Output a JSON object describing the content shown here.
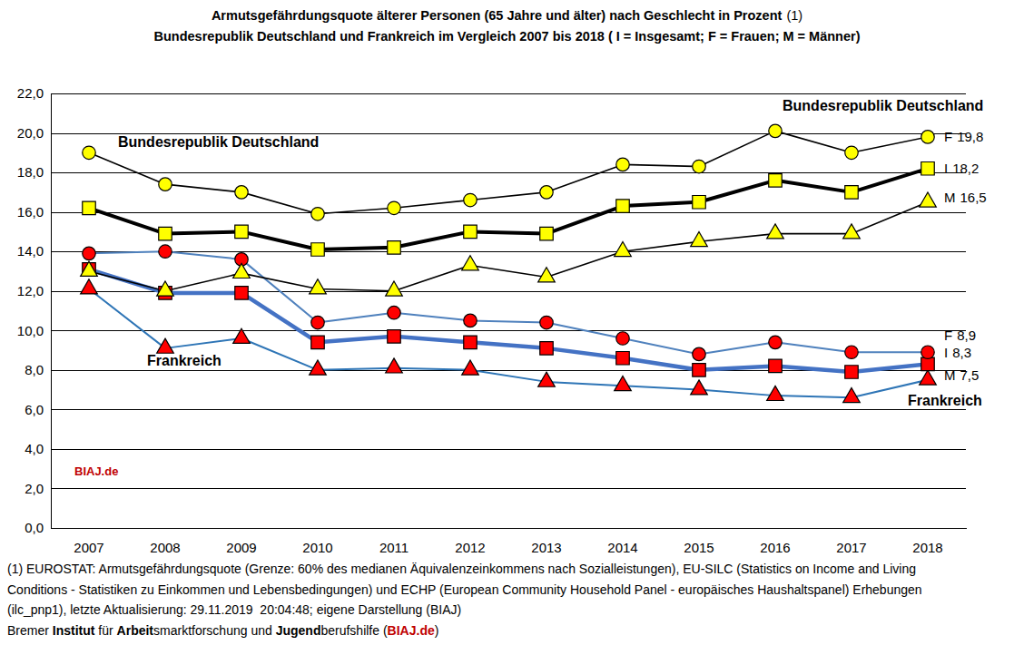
{
  "chart_data": {
    "type": "line",
    "title": "Armutsgefährdungsquote älterer Personen (65 Jahre und älter) nach Geschlecht in Prozent",
    "title_ref": "(1)",
    "subtitle": "Bundesrepublik Deutschland und Frankreich im Vergleich 2007 bis 2018 ( I = Insgesamt; F = Frauen; M = Männer)",
    "categories": [
      "2007",
      "2008",
      "2009",
      "2010",
      "2011",
      "2012",
      "2013",
      "2014",
      "2015",
      "2016",
      "2017",
      "2018"
    ],
    "ylim": [
      0,
      22
    ],
    "yticks": [
      {
        "value": 0,
        "label": "0,0"
      },
      {
        "value": 2,
        "label": "2,0"
      },
      {
        "value": 4,
        "label": "4,0"
      },
      {
        "value": 6,
        "label": "6,0"
      },
      {
        "value": 8,
        "label": "8,0"
      },
      {
        "value": 10,
        "label": "10,0"
      },
      {
        "value": 12,
        "label": "12,0"
      },
      {
        "value": 14,
        "label": "14,0"
      },
      {
        "value": 16,
        "label": "16,0"
      },
      {
        "value": 18,
        "label": "18,0"
      },
      {
        "value": 20,
        "label": "20,0"
      },
      {
        "value": 22,
        "label": "22,0"
      }
    ],
    "grid": true,
    "series": [
      {
        "name": "F",
        "color": "#000000",
        "marker": "circle",
        "line_style": "solid",
        "values": [
          19.0,
          17.4,
          17.0,
          15.9,
          16.2,
          16.6,
          17.0,
          18.4,
          18.3,
          20.1,
          19.0,
          19.8
        ],
        "value_labels": [
          null,
          null,
          null,
          null,
          null,
          null,
          null,
          null,
          null,
          null,
          null,
          "19,8"
        ]
      },
      {
        "name": "I",
        "color": "#000000",
        "marker": "square",
        "line_style": "solid",
        "values": [
          16.2,
          14.9,
          15.0,
          14.1,
          14.2,
          15.0,
          14.9,
          16.3,
          16.5,
          17.6,
          17.0,
          18.2
        ],
        "value_labels": [
          null,
          null,
          null,
          null,
          null,
          null,
          null,
          null,
          null,
          null,
          null,
          "18,2"
        ]
      },
      {
        "name": "M",
        "color": "#000000",
        "marker": "triangle",
        "line_style": "solid",
        "values": [
          13.0,
          12.0,
          12.9,
          12.1,
          12.0,
          13.3,
          12.7,
          14.0,
          14.5,
          14.9,
          14.9,
          16.5
        ],
        "value_labels": [
          null,
          null,
          null,
          null,
          null,
          null,
          null,
          null,
          null,
          null,
          null,
          "16,5"
        ]
      },
      {
        "name": "F",
        "color": "#4f81bd",
        "marker": "circle",
        "line_style": "solid",
        "values": [
          13.9,
          14.0,
          13.6,
          10.4,
          10.9,
          10.5,
          10.4,
          9.6,
          8.8,
          9.4,
          8.9,
          8.9
        ],
        "value_labels": [
          null,
          null,
          null,
          null,
          null,
          null,
          null,
          null,
          null,
          null,
          null,
          "8,9"
        ]
      },
      {
        "name": "I",
        "color": "#4472c4",
        "marker": "square",
        "line_style": "solid",
        "values": [
          13.1,
          11.9,
          11.9,
          9.4,
          9.7,
          9.4,
          9.1,
          8.6,
          8.0,
          8.2,
          7.9,
          8.3
        ],
        "value_labels": [
          null,
          null,
          null,
          null,
          null,
          null,
          null,
          null,
          null,
          null,
          null,
          "8,3"
        ]
      },
      {
        "name": "M",
        "color": "#2e75b6",
        "marker": "triangle",
        "line_style": "solid",
        "values": [
          12.1,
          9.1,
          9.6,
          8.0,
          8.1,
          8.0,
          7.4,
          7.2,
          7.0,
          6.7,
          6.6,
          7.5
        ],
        "value_labels": [
          null,
          null,
          null,
          null,
          null,
          null,
          null,
          null,
          null,
          null,
          null,
          "7,5"
        ]
      }
    ],
    "annotations": [
      "Bundesrepublik Deutschland",
      "Bundesrepublik Deutschland",
      "Frankreich",
      "Frankreich"
    ],
    "watermark": "BIAJ.de",
    "source": [
      "(1) EUROSTAT: Armutsgefährdungsquote (Grenze: 60% des medianen Äquivalenzeinkommens nach Sozialleistungen), EU-SILC (Statistics on Income and Living",
      "Conditions - Statistiken zu Einkommen und Lebensbedingungen) und ECHP (European Community Household Panel - europäisches Haushaltspanel) Erhebungen",
      "(ilc_pnp1), letzte Aktualisierung: 29.11.2019  20:04:48; eigene Darstellung (BIAJ)"
    ],
    "credit": [
      "Bremer ",
      "Institut",
      " für ",
      "Arbeit",
      "smarktforschung und ",
      "Jugend",
      "berufshilfe (",
      "BIAJ.de",
      ")"
    ]
  }
}
